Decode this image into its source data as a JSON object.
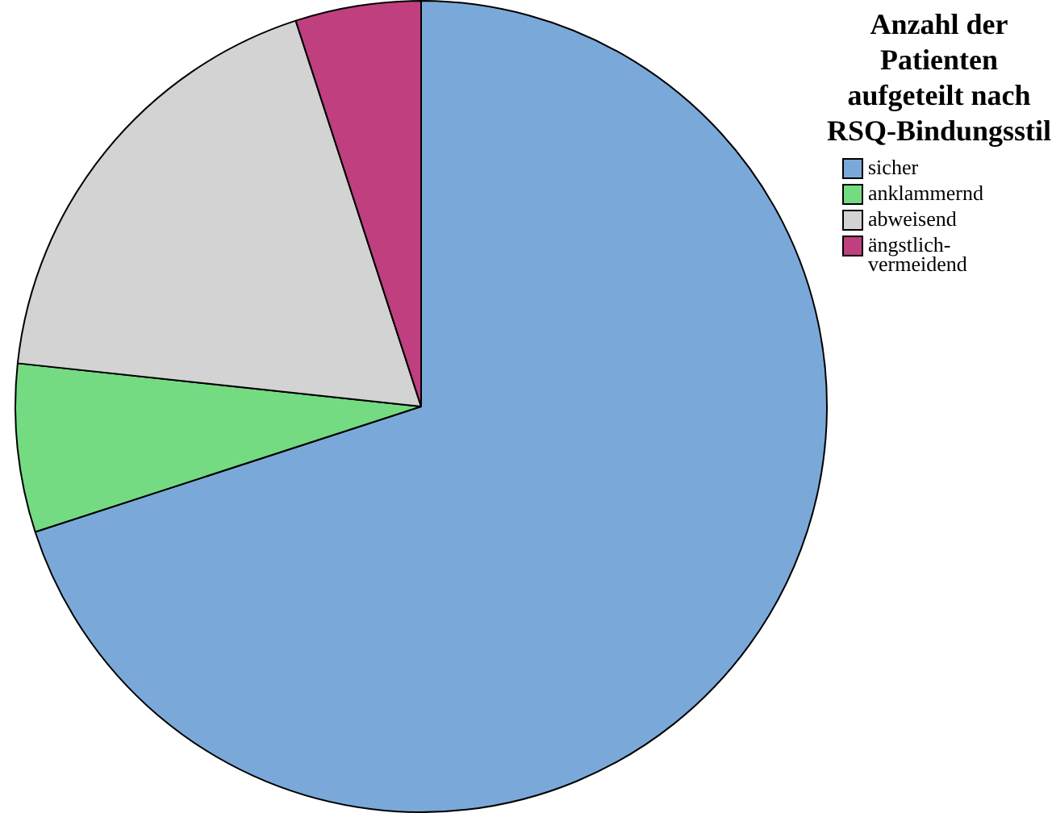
{
  "chart_data": {
    "type": "pie",
    "legend_title": "Anzahl der Patienten aufgeteilt nach RSQ-Bindungsstil",
    "categories": [
      "sicher",
      "anklammernd",
      "abweisend",
      "ängstlich-vermeidend"
    ],
    "values": [
      70,
      6.7,
      18.3,
      5
    ],
    "colors": [
      "#7aa9d9",
      "#74db82",
      "#d3d3d3",
      "#bf3f7f"
    ],
    "legend": "top right"
  }
}
